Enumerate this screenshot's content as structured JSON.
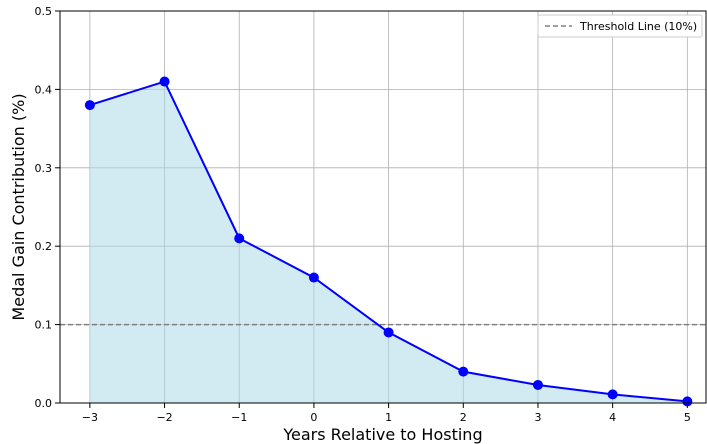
{
  "chart_data": {
    "type": "line",
    "title": "",
    "xlabel": "Years Relative to Hosting",
    "ylabel": "Medal Gain Contribution (%)",
    "x": [
      -3,
      -2,
      -1,
      0,
      1,
      2,
      3,
      4,
      5
    ],
    "x_tick_labels": [
      "−3",
      "−2",
      "−1",
      "0",
      "1",
      "2",
      "3",
      "4",
      "5"
    ],
    "series": [
      {
        "name": "",
        "values": [
          0.38,
          0.41,
          0.21,
          0.16,
          0.09,
          0.04,
          0.023,
          0.011,
          0.002
        ],
        "color": "#0000ff",
        "fill_color": "#add8e6",
        "marker": "circle"
      }
    ],
    "threshold": {
      "label": "Threshold Line (10%)",
      "value": 0.1,
      "color": "#808080",
      "style": "dashed"
    },
    "xlim": [
      -3.4,
      5.25
    ],
    "ylim": [
      0,
      0.5
    ],
    "y_ticks": [
      0.0,
      0.1,
      0.2,
      0.3,
      0.4,
      0.5
    ],
    "y_tick_labels": [
      "0.0",
      "0.1",
      "0.2",
      "0.3",
      "0.4",
      "0.5"
    ],
    "grid": true,
    "legend_position": "top-right"
  }
}
